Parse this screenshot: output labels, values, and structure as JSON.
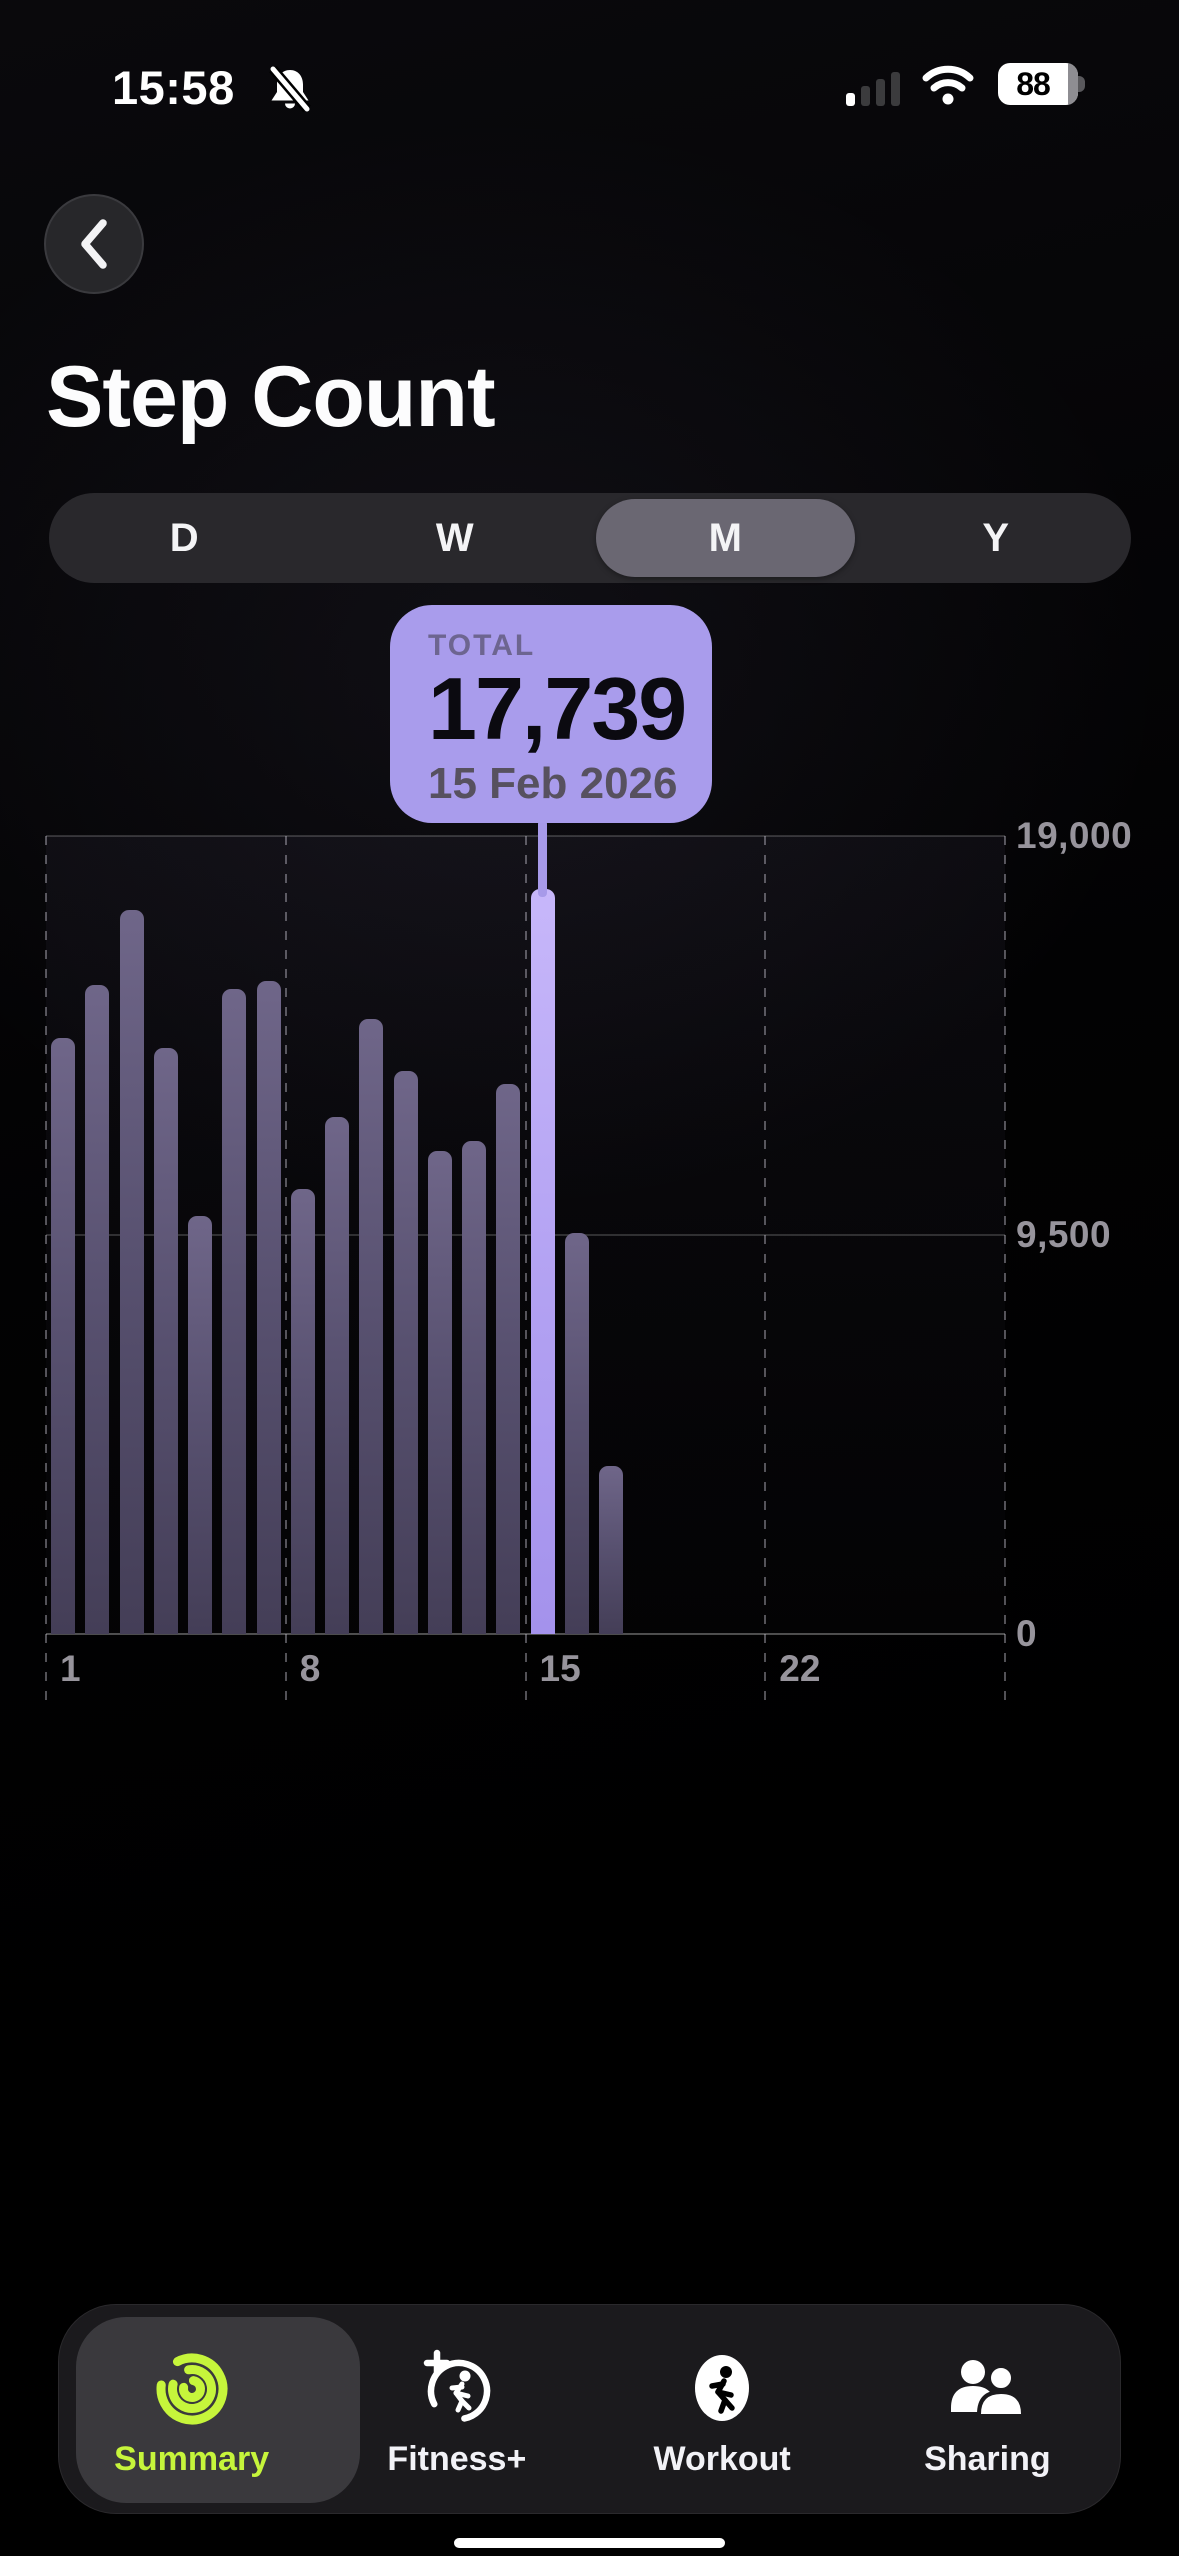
{
  "status_bar": {
    "time": "15:58",
    "battery_percent": "88",
    "icons": [
      "bell-slash-icon",
      "cellular-signal-icon",
      "wifi-icon",
      "battery-icon"
    ],
    "cellular_bars_active": 1,
    "cellular_bars_total": 4
  },
  "header": {
    "back_icon": "chevron-left-icon",
    "title": "Step Count"
  },
  "segmented_control": {
    "options": [
      {
        "label": "D",
        "selected": false
      },
      {
        "label": "W",
        "selected": false
      },
      {
        "label": "M",
        "selected": true
      },
      {
        "label": "Y",
        "selected": false
      }
    ]
  },
  "tooltip": {
    "label": "TOTAL",
    "value": "17,739",
    "date": "15 Feb 2026"
  },
  "chart_data": {
    "type": "bar",
    "title": "Step Count",
    "x_unit": "day of month (February 2026)",
    "categories": [
      1,
      2,
      3,
      4,
      5,
      6,
      7,
      8,
      9,
      10,
      11,
      12,
      13,
      14,
      15,
      16,
      17
    ],
    "values": [
      14200,
      15450,
      17250,
      13950,
      9950,
      15350,
      15550,
      10600,
      12300,
      14650,
      13400,
      11500,
      11750,
      13100,
      17739,
      9550,
      4000
    ],
    "selected_index": 14,
    "selected_value": 17739,
    "selected_date": "15 Feb 2026",
    "days_in_month": 28,
    "ylim": [
      0,
      19000
    ],
    "yticks": [
      {
        "value": 19000,
        "label": "19,000"
      },
      {
        "value": 9500,
        "label": "9,500"
      },
      {
        "value": 0,
        "label": "0"
      }
    ],
    "xticks": [
      {
        "day": 1,
        "label": "1"
      },
      {
        "day": 8,
        "label": "8"
      },
      {
        "day": 15,
        "label": "15"
      },
      {
        "day": 22,
        "label": "22"
      }
    ],
    "grid": true,
    "legend": false
  },
  "tab_bar": {
    "items": [
      {
        "label": "Summary",
        "icon": "activity-rings-icon",
        "selected": true
      },
      {
        "label": "Fitness+",
        "icon": "fitness-plus-icon",
        "selected": false
      },
      {
        "label": "Workout",
        "icon": "workout-runner-icon",
        "selected": false
      },
      {
        "label": "Sharing",
        "icon": "sharing-people-icon",
        "selected": false
      }
    ]
  },
  "colors": {
    "accent_purple": "#a99cec",
    "selected_bar": "#b2a1f2",
    "bar_gradient_top": "#6f6689",
    "bar_gradient_bottom": "#443e57",
    "summary_green": "#c6f53b",
    "axis_label": "#97949c",
    "background": "#000000"
  }
}
